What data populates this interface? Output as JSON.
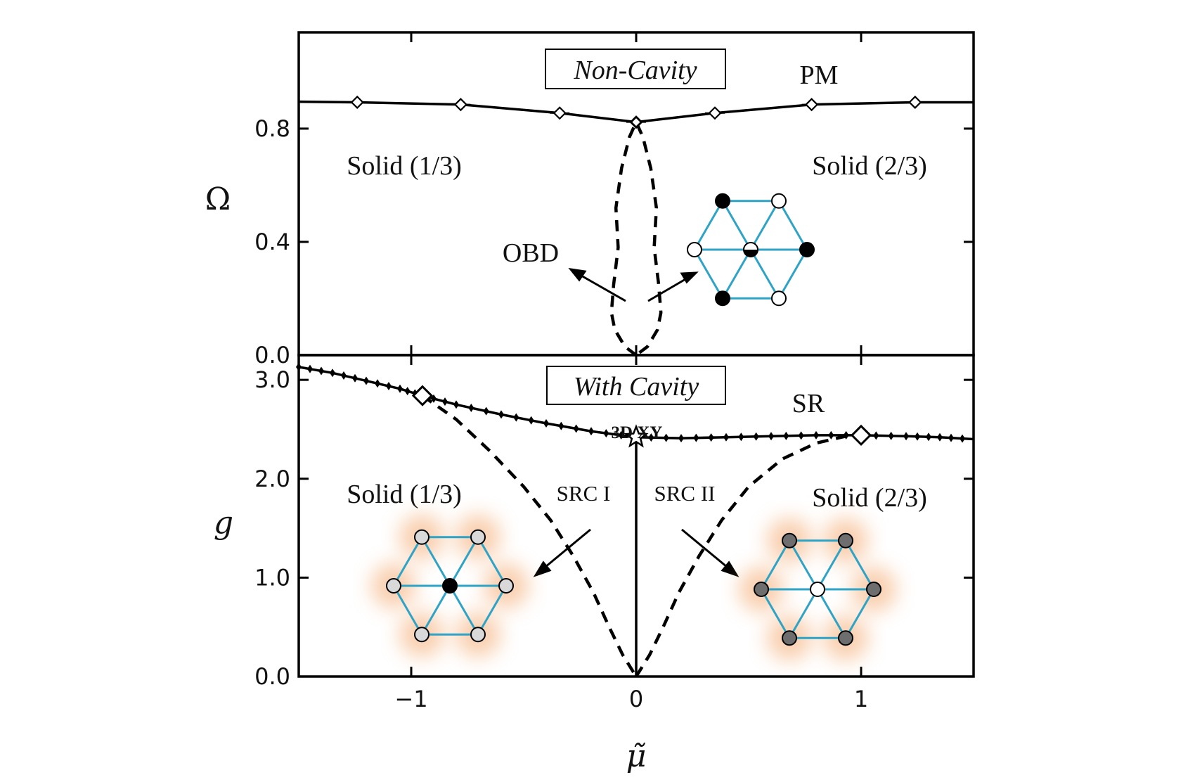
{
  "chart_data": [
    {
      "type": "line",
      "panel": "top",
      "boxed_title": "Non-Cavity",
      "ylabel": "Ω",
      "xlim": [
        -1.5,
        1.5
      ],
      "ylim": [
        0.0,
        1.14
      ],
      "yticks": [
        0.0,
        0.4,
        0.8
      ],
      "ytick_labels": [
        "0.0",
        "0.4",
        "0.8"
      ],
      "xticks": [
        -1,
        0,
        1
      ],
      "series": [
        {
          "style": "solid-diamond",
          "x": [
            -1.5,
            -1.24,
            -0.78,
            -0.34,
            0.0,
            0.35,
            0.78,
            1.24,
            1.5
          ],
          "y": [
            0.895,
            0.893,
            0.885,
            0.855,
            0.823,
            0.855,
            0.885,
            0.893,
            0.893
          ]
        },
        {
          "style": "dashed",
          "x": [
            0.0,
            -0.05,
            -0.095,
            -0.11,
            -0.1,
            -0.08,
            -0.09,
            -0.065,
            -0.03,
            0.0,
            0.03,
            0.065,
            0.09,
            0.08,
            0.1,
            0.11,
            0.095,
            0.05,
            0.0
          ],
          "y": [
            0.0,
            0.03,
            0.09,
            0.15,
            0.25,
            0.38,
            0.52,
            0.66,
            0.77,
            0.823,
            0.77,
            0.66,
            0.52,
            0.38,
            0.25,
            0.15,
            0.09,
            0.03,
            0.0
          ]
        }
      ],
      "annotations": [
        "PM",
        "Solid (1/3)",
        "Solid (2/3)",
        "OBD"
      ]
    },
    {
      "type": "line",
      "panel": "bottom",
      "boxed_title": "With Cavity",
      "xlabel": "μ̃",
      "ylabel": "g",
      "xlim": [
        -1.5,
        1.5
      ],
      "ylim": [
        0.0,
        3.25
      ],
      "yticks": [
        0.0,
        1.0,
        2.0,
        3.0
      ],
      "ytick_labels": [
        "0.0",
        "1.0",
        "2.0",
        "3.0"
      ],
      "xticks": [
        -1,
        0,
        1
      ],
      "xtick_labels": [
        "−1",
        "0",
        "1"
      ],
      "series": [
        {
          "style": "solid-small-diamond",
          "x": [
            -1.5,
            -1.35,
            -1.2,
            -1.05,
            -0.95,
            -0.8,
            -0.6,
            -0.4,
            -0.2,
            0.0,
            0.2,
            0.4,
            0.6,
            0.8,
            1.0,
            1.2,
            1.35,
            1.5
          ],
          "y": [
            3.13,
            3.07,
            2.99,
            2.91,
            2.84,
            2.75,
            2.65,
            2.56,
            2.48,
            2.42,
            2.41,
            2.42,
            2.43,
            2.44,
            2.44,
            2.43,
            2.42,
            2.4
          ]
        },
        {
          "style": "dashed",
          "x": [
            -0.95,
            -0.8,
            -0.65,
            -0.5,
            -0.38,
            -0.28,
            -0.19,
            -0.12,
            -0.06,
            0.0
          ],
          "y": [
            2.84,
            2.6,
            2.28,
            1.92,
            1.58,
            1.22,
            0.85,
            0.5,
            0.22,
            0.0
          ]
        },
        {
          "style": "dashed",
          "x": [
            0.0,
            0.06,
            0.12,
            0.19,
            0.28,
            0.38,
            0.5,
            0.65,
            0.8,
            0.95
          ],
          "y": [
            0.0,
            0.22,
            0.5,
            0.85,
            1.22,
            1.58,
            1.92,
            2.2,
            2.36,
            2.44
          ]
        },
        {
          "style": "solid",
          "x": [
            0.0,
            0.0
          ],
          "y": [
            0.0,
            2.42
          ]
        }
      ],
      "markers": [
        {
          "kind": "open-diamond",
          "x": -0.95,
          "y": 2.84
        },
        {
          "kind": "open-diamond",
          "x": 1.0,
          "y": 2.44
        },
        {
          "kind": "open-star",
          "x": 0.0,
          "y": 2.42
        }
      ],
      "annotations": [
        "SR",
        "3D XY",
        "Solid (1/3)",
        "Solid (2/3)",
        "SRC I",
        "SRC II"
      ]
    }
  ],
  "labels": {
    "top_title": "Non-Cavity",
    "bottom_title": "With Cavity",
    "pm": "PM",
    "sr": "SR",
    "solid13": "Solid (1/3)",
    "solid23": "Solid (2/3)",
    "obd": "OBD",
    "xy3d": "3D XY",
    "src1": "SRC I",
    "src2": "SRC II",
    "omega": "Ω",
    "g": "g",
    "mu": "μ̃"
  },
  "colors": {
    "lattice_bond": "#2fa3c6",
    "glow": "#f4a66a",
    "site_filled": "#000000",
    "site_light_gray": "#d9d9d9",
    "site_dark_gray": "#6e6e6e",
    "site_empty": "#ffffff"
  },
  "icons": [
    "triangular-lattice-inset-top",
    "triangular-lattice-inset-left",
    "triangular-lattice-inset-right"
  ]
}
